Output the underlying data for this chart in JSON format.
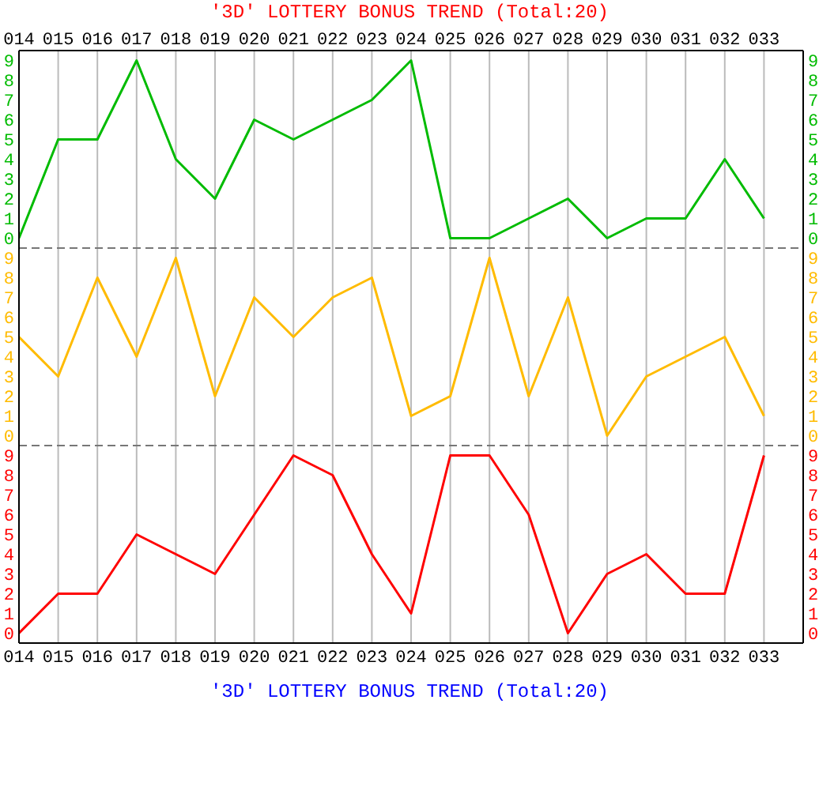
{
  "chart_data": [
    {
      "type": "line",
      "title": "'3D' LOTTERY BONUS TREND (Total:20)",
      "categories": [
        "014",
        "015",
        "016",
        "017",
        "018",
        "019",
        "020",
        "021",
        "022",
        "023",
        "024",
        "025",
        "026",
        "027",
        "028",
        "029",
        "030",
        "031",
        "032",
        "033"
      ],
      "series": [
        {
          "color": "#00bb00",
          "values": [
            0,
            5,
            5,
            9,
            4,
            2,
            6,
            5,
            6,
            7,
            9,
            0,
            0,
            1,
            2,
            0,
            1,
            1,
            4,
            1
          ]
        }
      ],
      "ylim": [
        -0.5,
        9.5
      ],
      "yticks": [
        0,
        1,
        2,
        3,
        4,
        5,
        6,
        7,
        8,
        9
      ],
      "y2lim": [
        -0.5,
        9.5
      ],
      "y2ticks": [
        0,
        1,
        2,
        3,
        4,
        5,
        6,
        7,
        8,
        9
      ],
      "grid": true,
      "legend": false
    },
    {
      "type": "line",
      "categories": [
        "014",
        "015",
        "016",
        "017",
        "018",
        "019",
        "020",
        "021",
        "022",
        "023",
        "024",
        "025",
        "026",
        "027",
        "028",
        "029",
        "030",
        "031",
        "032",
        "033"
      ],
      "series": [
        {
          "color": "#ffbb00",
          "values": [
            5,
            3,
            8,
            4,
            9,
            2,
            7,
            5,
            7,
            8,
            1,
            2,
            9,
            2,
            7,
            0,
            3,
            4,
            5,
            1
          ]
        }
      ],
      "ylim": [
        -0.5,
        9.5
      ],
      "yticks": [
        0,
        1,
        2,
        3,
        4,
        5,
        6,
        7,
        8,
        9
      ],
      "y2lim": [
        -0.5,
        9.5
      ],
      "y2ticks": [
        0,
        1,
        2,
        3,
        4,
        5,
        6,
        7,
        8,
        9
      ],
      "grid": true,
      "legend": false,
      "tick_labels": "y"
    },
    {
      "type": "line",
      "categories": [
        "014",
        "015",
        "016",
        "017",
        "018",
        "019",
        "020",
        "021",
        "022",
        "023",
        "024",
        "025",
        "026",
        "027",
        "028",
        "029",
        "030",
        "031",
        "032",
        "033"
      ],
      "series": [
        {
          "color": "#ff0000",
          "values": [
            0,
            2,
            2,
            5,
            4,
            3,
            6,
            9,
            8,
            4,
            1,
            9,
            9,
            6,
            0,
            3,
            4,
            2,
            2,
            9
          ]
        }
      ],
      "ylim": [
        -0.5,
        9.5
      ],
      "yticks": [
        0,
        1,
        2,
        3,
        4,
        5,
        6,
        7,
        8,
        9
      ],
      "y2lim": [
        -0.5,
        9.5
      ],
      "y2ticks": [
        0,
        1,
        2,
        3,
        4,
        5,
        6,
        7,
        8,
        9
      ],
      "grid": true,
      "legend": false,
      "annotations": [
        "'3D' LOTTERY BONUS TREND (Total:20)"
      ]
    }
  ]
}
